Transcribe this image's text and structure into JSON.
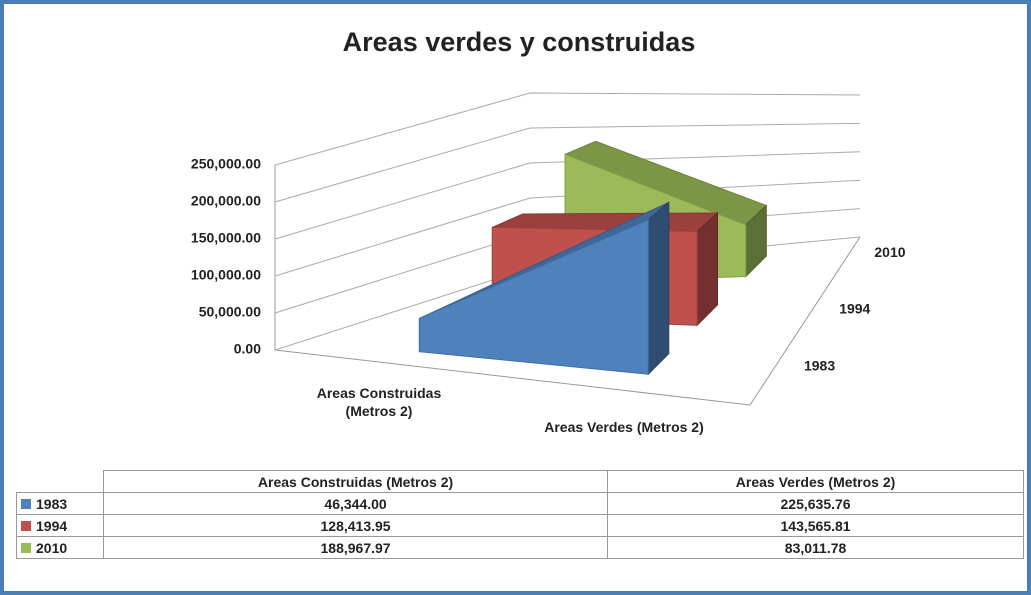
{
  "chart_data": {
    "type": "area3d",
    "title": "Areas verdes y construidas",
    "categories": [
      "Areas Construidas (Metros 2)",
      "Areas Verdes (Metros 2)"
    ],
    "series": [
      {
        "name": "1983",
        "color": "#4f81bd",
        "values": [
          46344.0,
          225635.76
        ],
        "value_labels": [
          "46,344.00",
          "225,635.76"
        ]
      },
      {
        "name": "1994",
        "color": "#c0504d",
        "values": [
          128413.95,
          143565.81
        ],
        "value_labels": [
          "128,413.95",
          "143,565.81"
        ]
      },
      {
        "name": "2010",
        "color": "#9bbb59",
        "values": [
          188967.97,
          83011.78
        ],
        "value_labels": [
          "188,967.97",
          "83,011.78"
        ]
      }
    ],
    "ylim": [
      0,
      250000
    ],
    "yticks": [
      {
        "value": 0,
        "label": "0.00"
      },
      {
        "value": 50000,
        "label": "50,000.00"
      },
      {
        "value": 100000,
        "label": "100,000.00"
      },
      {
        "value": 150000,
        "label": "150,000.00"
      },
      {
        "value": 200000,
        "label": "200,000.00"
      },
      {
        "value": 250000,
        "label": "250,000.00"
      }
    ],
    "grid": true,
    "data_table": true
  }
}
